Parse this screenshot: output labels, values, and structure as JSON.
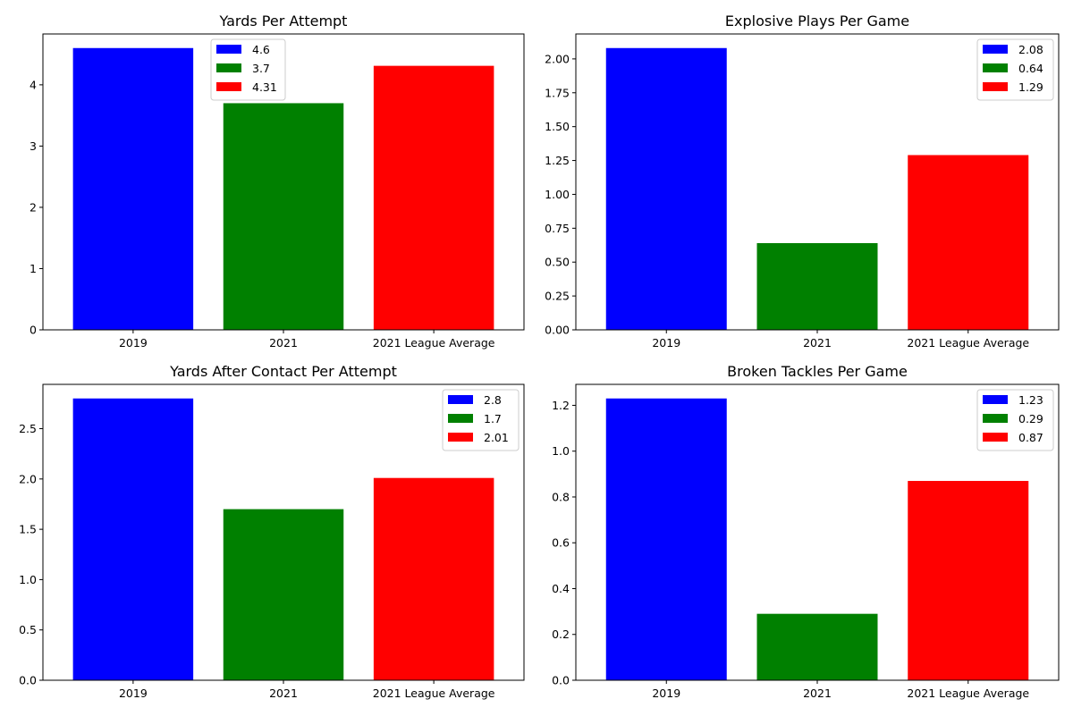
{
  "colors": {
    "series_1": "#0000ff",
    "series_2": "#008000",
    "series_3": "#ff0000"
  },
  "chart_data": [
    {
      "type": "bar",
      "title": "Yards Per Attempt",
      "categories": [
        "2019",
        "2021",
        "2021 League Average"
      ],
      "values": [
        4.6,
        3.7,
        4.31
      ],
      "legend_labels": [
        "4.6",
        "3.7",
        "4.31"
      ],
      "ylim": [
        0,
        4.83
      ],
      "yticks": [
        0,
        1,
        2,
        3,
        4
      ],
      "ytick_labels": [
        "0",
        "1",
        "2",
        "3",
        "4"
      ],
      "grid": false,
      "legend_position": "top-center"
    },
    {
      "type": "bar",
      "title": "Explosive Plays Per Game",
      "categories": [
        "2019",
        "2021",
        "2021 League Average"
      ],
      "values": [
        2.08,
        0.64,
        1.29
      ],
      "legend_labels": [
        "2.08",
        "0.64",
        "1.29"
      ],
      "ylim": [
        0,
        2.184
      ],
      "yticks": [
        0,
        0.25,
        0.5,
        0.75,
        1.0,
        1.25,
        1.5,
        1.75,
        2.0
      ],
      "ytick_labels": [
        "0.00",
        "0.25",
        "0.50",
        "0.75",
        "1.00",
        "1.25",
        "1.50",
        "1.75",
        "2.00"
      ],
      "grid": false,
      "legend_position": "top-right"
    },
    {
      "type": "bar",
      "title": "Yards After Contact Per Attempt",
      "categories": [
        "2019",
        "2021",
        "2021 League Average"
      ],
      "values": [
        2.8,
        1.7,
        2.01
      ],
      "legend_labels": [
        "2.8",
        "1.7",
        "2.01"
      ],
      "ylim": [
        0,
        2.94
      ],
      "yticks": [
        0,
        0.5,
        1.0,
        1.5,
        2.0,
        2.5
      ],
      "ytick_labels": [
        "0.0",
        "0.5",
        "1.0",
        "1.5",
        "2.0",
        "2.5"
      ],
      "grid": false,
      "legend_position": "top-right"
    },
    {
      "type": "bar",
      "title": "Broken Tackles Per Game",
      "categories": [
        "2019",
        "2021",
        "2021 League Average"
      ],
      "values": [
        1.23,
        0.29,
        0.87
      ],
      "legend_labels": [
        "1.23",
        "0.29",
        "0.87"
      ],
      "ylim": [
        0,
        1.2915
      ],
      "yticks": [
        0,
        0.2,
        0.4,
        0.6,
        0.8,
        1.0,
        1.2
      ],
      "ytick_labels": [
        "0.0",
        "0.2",
        "0.4",
        "0.6",
        "0.8",
        "1.0",
        "1.2"
      ],
      "grid": false,
      "legend_position": "top-right"
    }
  ]
}
